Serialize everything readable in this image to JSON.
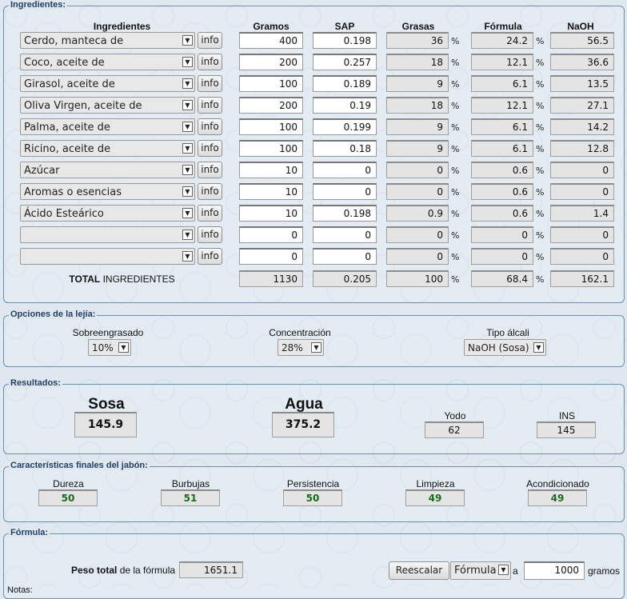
{
  "ingredients": {
    "legend": "Ingredientes:",
    "headers": {
      "name": "Ingredientes",
      "grams": "Gramos",
      "sap": "SAP",
      "fats": "Grasas",
      "formula": "Fórmula",
      "naoh": "NaOH"
    },
    "info_label": "info",
    "pct": "%",
    "rows": [
      {
        "name": "Cerdo, manteca de",
        "grams": "400",
        "sap": "0.198",
        "fats": "36",
        "formula": "24.2",
        "naoh": "56.5"
      },
      {
        "name": "Coco, aceite de",
        "grams": "200",
        "sap": "0.257",
        "fats": "18",
        "formula": "12.1",
        "naoh": "36.6"
      },
      {
        "name": "Girasol, aceite de",
        "grams": "100",
        "sap": "0.189",
        "fats": "9",
        "formula": "6.1",
        "naoh": "13.5"
      },
      {
        "name": "Oliva Virgen, aceite de",
        "grams": "200",
        "sap": "0.19",
        "fats": "18",
        "formula": "12.1",
        "naoh": "27.1"
      },
      {
        "name": "Palma, aceite de",
        "grams": "100",
        "sap": "0.199",
        "fats": "9",
        "formula": "6.1",
        "naoh": "14.2"
      },
      {
        "name": "Ricino, aceite de",
        "grams": "100",
        "sap": "0.18",
        "fats": "9",
        "formula": "6.1",
        "naoh": "12.8"
      },
      {
        "name": "Azúcar",
        "grams": "10",
        "sap": "0",
        "fats": "0",
        "formula": "0.6",
        "naoh": "0"
      },
      {
        "name": "Aromas o esencias",
        "grams": "10",
        "sap": "0",
        "fats": "0",
        "formula": "0.6",
        "naoh": "0"
      },
      {
        "name": "Ácido Esteárico",
        "grams": "10",
        "sap": "0.198",
        "fats": "0.9",
        "formula": "0.6",
        "naoh": "1.4"
      },
      {
        "name": "",
        "grams": "0",
        "sap": "0",
        "fats": "0",
        "formula": "0",
        "naoh": "0"
      },
      {
        "name": "",
        "grams": "0",
        "sap": "0",
        "fats": "0",
        "formula": "0",
        "naoh": "0"
      }
    ],
    "total": {
      "label_bold": "TOTAL",
      "label_rest": " INGREDIENTES",
      "grams": "1130",
      "sap": "0.205",
      "fats": "100",
      "formula": "68.4",
      "naoh": "162.1"
    }
  },
  "lye": {
    "legend": "Opciones de la lejía:",
    "superfat_label": "Sobreengrasado",
    "superfat_value": "10%",
    "concentration_label": "Concentración",
    "concentration_value": "28%",
    "alkali_label": "Tipo álcali",
    "alkali_value": "NaOH (Sosa)"
  },
  "results": {
    "legend": "Resultados:",
    "soda_label": "Sosa",
    "soda_value": "145.9",
    "water_label": "Agua",
    "water_value": "375.2",
    "iodine_label": "Yodo",
    "iodine_value": "62",
    "ins_label": "INS",
    "ins_value": "145"
  },
  "traits": {
    "legend": "Características finales del jabón:",
    "items": [
      {
        "label": "Dureza",
        "value": "50"
      },
      {
        "label": "Burbujas",
        "value": "51"
      },
      {
        "label": "Persistencia",
        "value": "50"
      },
      {
        "label": "Limpieza",
        "value": "49"
      },
      {
        "label": "Acondicionado",
        "value": "49"
      }
    ]
  },
  "formula": {
    "legend": "Fórmula:",
    "weight_bold": "Peso total",
    "weight_rest": " de la fórmula",
    "weight_value": "1651.1",
    "rescale_button": "Reescalar",
    "rescale_select": "Fórmula",
    "to_label": "a",
    "target_value": "1000",
    "unit": "gramos",
    "notes_label": "Notas:"
  }
}
